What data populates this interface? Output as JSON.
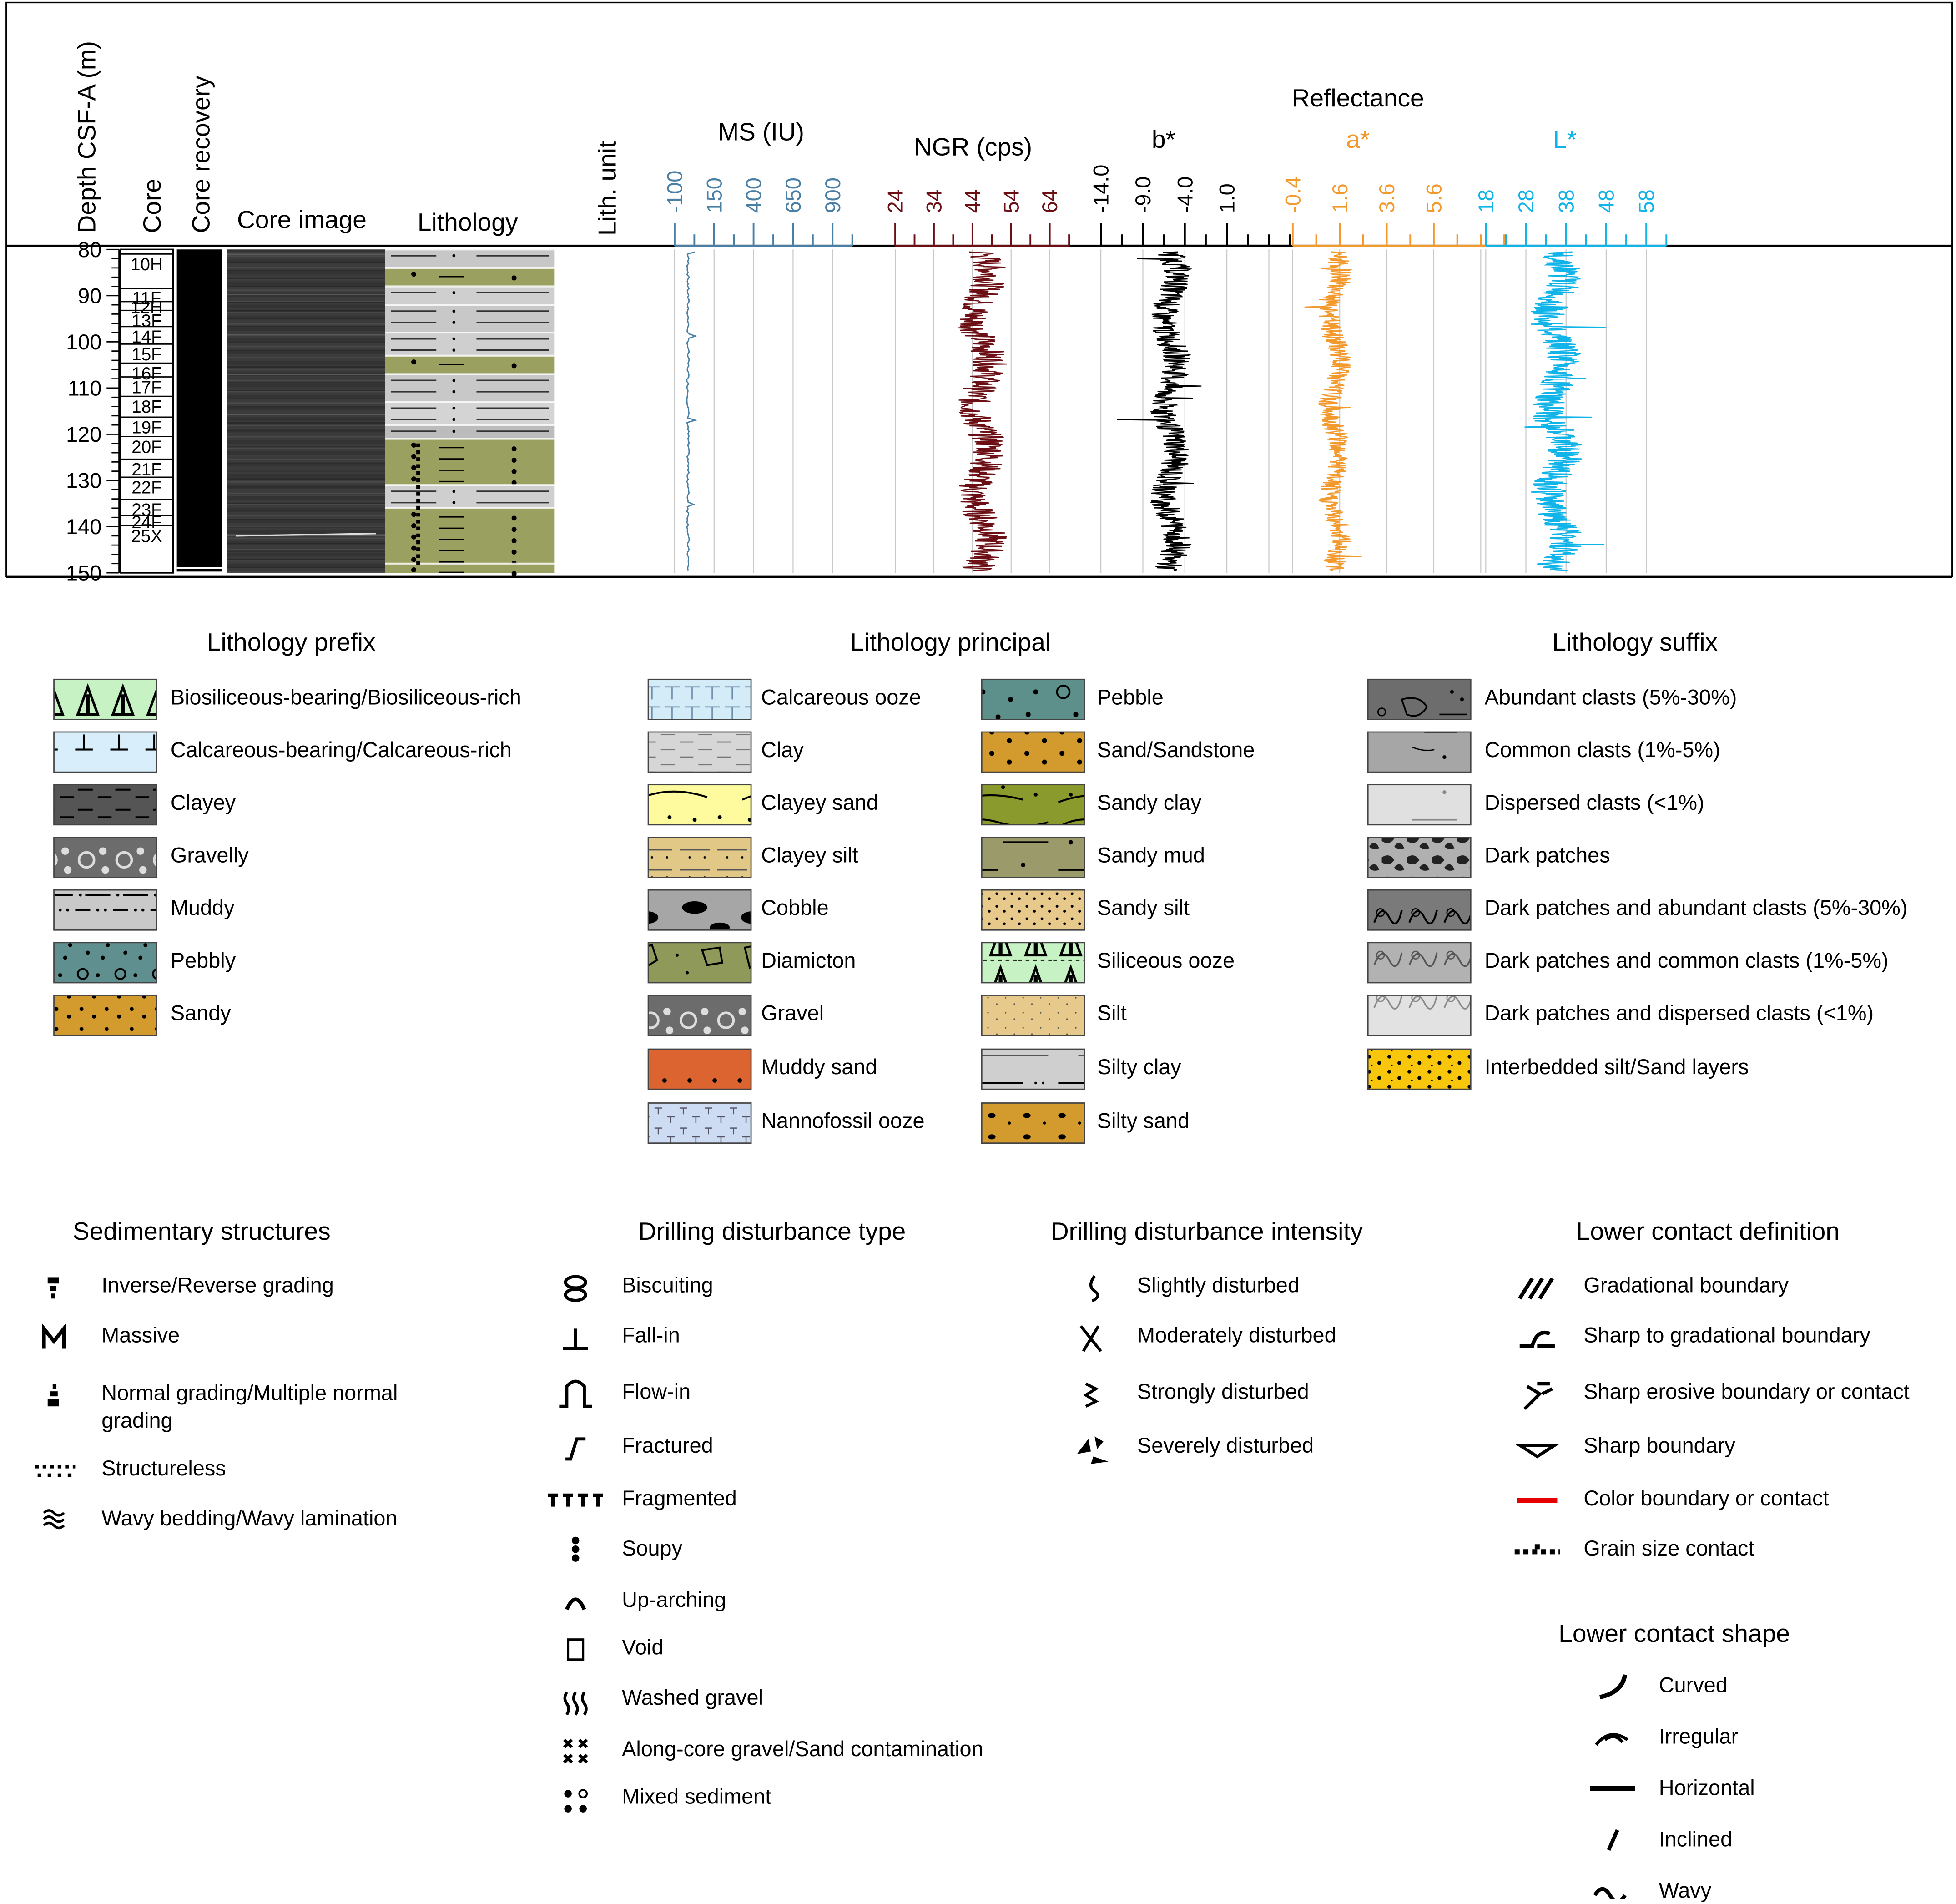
{
  "header": {
    "depth_label": "Depth CSF-A (m)",
    "core_label": "Core",
    "recovery_label": "Core recovery",
    "image_label": "Core image",
    "lithology_label": "Lithology",
    "lith_unit_label": "Lith. unit",
    "reflectance_label": "Reflectance"
  },
  "depth_ticks": [
    "80",
    "90",
    "100",
    "110",
    "120",
    "130",
    "140",
    "150"
  ],
  "cores": [
    "10H",
    "11F",
    "12H",
    "13F",
    "14F",
    "15F",
    "16F",
    "17F",
    "18F",
    "19F",
    "20F",
    "21F",
    "22F",
    "23F",
    "24F",
    "25X"
  ],
  "colors": {
    "ms": "#4a7fa5",
    "ngr": "#6b0f14",
    "bstar": "#000000",
    "astar": "#f39a2e",
    "lstar": "#11b4e8"
  },
  "chart_data": [
    {
      "type": "line",
      "name": "MS",
      "xlabel": "MS (IU)",
      "ticks": [
        "-100",
        "150",
        "400",
        "650",
        "900"
      ],
      "ylim": [
        80,
        150
      ],
      "color": "#4a7fa5",
      "approx_mean": 50
    },
    {
      "type": "line",
      "name": "NGR",
      "xlabel": "NGR (cps)",
      "ticks": [
        "24",
        "34",
        "44",
        "54",
        "64"
      ],
      "ylim": [
        80,
        150
      ],
      "color": "#6b0f14",
      "approx_range": [
        36,
        56
      ]
    },
    {
      "type": "line",
      "name": "b*",
      "xlabel": "b*",
      "ticks": [
        "-14.0",
        "-9.0",
        "-4.0",
        "1.0"
      ],
      "ylim": [
        80,
        150
      ],
      "color": "#000000",
      "approx_range": [
        -9,
        1
      ]
    },
    {
      "type": "line",
      "name": "a*",
      "xlabel": "a*",
      "ticks": [
        "-0.4",
        "1.6",
        "3.6",
        "5.6"
      ],
      "ylim": [
        80,
        150
      ],
      "color": "#f39a2e",
      "approx_range": [
        0.6,
        3.4
      ]
    },
    {
      "type": "line",
      "name": "L*",
      "xlabel": "L*",
      "ticks": [
        "18",
        "28",
        "38",
        "48",
        "58"
      ],
      "ylim": [
        80,
        150
      ],
      "color": "#11b4e8",
      "approx_range": [
        27,
        48
      ]
    }
  ],
  "legend": {
    "prefix": {
      "title": "Lithology prefix",
      "items": [
        "Biosiliceous-bearing/Biosiliceous-rich",
        "Calcareous-bearing/Calcareous-rich",
        "Clayey",
        "Gravelly",
        "Muddy",
        "Pebbly",
        "Sandy"
      ]
    },
    "principal": {
      "title": "Lithology principal",
      "col1": [
        "Calcareous ooze",
        "Clay",
        "Clayey sand",
        "Clayey silt",
        "Cobble",
        "Diamicton",
        "Gravel",
        "Muddy sand",
        "Nannofossil ooze"
      ],
      "col2": [
        "Pebble",
        "Sand/Sandstone",
        "Sandy clay",
        "Sandy mud",
        "Sandy silt",
        "Siliceous ooze",
        "Silt",
        "Silty clay",
        "Silty sand"
      ]
    },
    "suffix": {
      "title": "Lithology suffix",
      "items": [
        "Abundant clasts (5%-30%)",
        "Common clasts (1%-5%)",
        "Dispersed clasts (<1%)",
        "Dark patches",
        "Dark patches and abundant clasts (5%-30%)",
        "Dark patches and common clasts (1%-5%)",
        "Dark patches and dispersed clasts (<1%)",
        "Interbedded silt/Sand layers"
      ]
    },
    "sed": {
      "title": "Sedimentary structures",
      "items": [
        "Inverse/Reverse grading",
        "Massive",
        "Normal grading/Multiple normal grading",
        "Structureless",
        "Wavy bedding/Wavy lamination"
      ]
    },
    "dtype": {
      "title": "Drilling disturbance type",
      "items": [
        "Biscuiting",
        "Fall-in",
        "Flow-in",
        "Fractured",
        "Fragmented",
        "Soupy",
        "Up-arching",
        "Void",
        "Washed gravel",
        "Along-core gravel/Sand contamination",
        "Mixed sediment"
      ]
    },
    "dint": {
      "title": "Drilling disturbance intensity",
      "items": [
        "Slightly disturbed",
        "Moderately disturbed",
        "Strongly disturbed",
        "Severely disturbed"
      ]
    },
    "lcd": {
      "title": "Lower contact definition",
      "items": [
        "Gradational boundary",
        "Sharp to gradational boundary",
        "Sharp erosive boundary or contact",
        "Sharp boundary",
        "Color boundary or contact",
        "Grain size contact"
      ]
    },
    "lcs": {
      "title": "Lower contact shape",
      "items": [
        "Curved",
        "Irregular",
        "Horizontal",
        "Inclined",
        "Wavy"
      ]
    }
  }
}
